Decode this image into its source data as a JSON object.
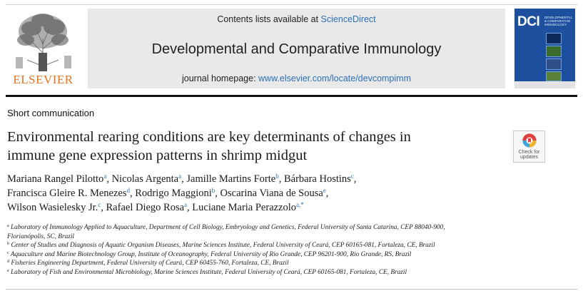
{
  "header": {
    "contents_prefix": "Contents lists available at ",
    "contents_link": "ScienceDirect",
    "journal_title": "Developmental and Comparative Immunology",
    "homepage_prefix": "journal homepage: ",
    "homepage_url": "www.elsevier.com/locate/devcompimm",
    "publisher_logo": "ELSEVIER",
    "cover_abbr": "DCI",
    "cover_subtitle": "DEVELOPMENTAL & COMPARATIVE IMMUNOLOGY"
  },
  "article": {
    "type": "Short communication",
    "title_line1": "Environmental rearing conditions are key determinants of changes in",
    "title_line2": "immune gene expression patterns in shrimp midgut",
    "check_updates_line1": "Check for",
    "check_updates_line2": "updates"
  },
  "authors": [
    {
      "name": "Mariana Rangel Pilotto",
      "sup": "a",
      "sep": ", "
    },
    {
      "name": "Nicolas Argenta",
      "sup": "a",
      "sep": ", "
    },
    {
      "name": "Jamille Martins Forte",
      "sup": "b",
      "sep": ", "
    },
    {
      "name": "Bárbara Hostins",
      "sup": "c",
      "sep": ","
    },
    {
      "name": "Francisca Gleire R. Menezes",
      "sup": "d",
      "sep": ", "
    },
    {
      "name": "Rodrigo Maggioni",
      "sup": "b",
      "sep": ", "
    },
    {
      "name": "Oscarina Viana de Sousa",
      "sup": "e",
      "sep": ","
    },
    {
      "name": "Wilson Wasielesky Jr.",
      "sup": "c",
      "sep": ", "
    },
    {
      "name": "Rafael Diego Rosa",
      "sup": "a",
      "sep": ", "
    },
    {
      "name": "Luciane Maria Perazzolo",
      "sup": "a,*",
      "sep": ""
    }
  ],
  "affiliations": [
    {
      "sup": "a",
      "text": "Laboratory of Immunology Applied to Aquaculture, Department of Cell Biology, Embryology and Genetics, Federal University of Santa Catarina, CEP 88040-900,"
    },
    {
      "sup": "",
      "text": "Florianópolis, SC, Brazil"
    },
    {
      "sup": "b",
      "text": "Center of Studies and Diagnosis of Aquatic Organism Diseases, Marine Sciences Institute, Federal University of Ceará, CEP 60165-081, Fortaleza, CE, Brazil"
    },
    {
      "sup": "c",
      "text": "Aquaculture and Marine Biotechnology Group, Institute of Oceanography, Federal University of Rio Grande, CEP 96201-900, Rio Grande, RS, Brazil"
    },
    {
      "sup": "d",
      "text": "Fisheries Engineering Department, Federal University of Ceará, CEP 60455-760, Fortaleza, CE, Brazil"
    },
    {
      "sup": "e",
      "text": "Laboratory of Fish and Environmental Microbiology, Marine Sciences Institute, Federal University of Ceará, CEP 60165-081, Fortaleza, CE, Brazil"
    }
  ],
  "colors": {
    "link": "#2a6fb5",
    "elsevier_orange": "#e9711c",
    "banner_bg": "#e9e9e9",
    "cover_blue": "#1d4f9f"
  }
}
